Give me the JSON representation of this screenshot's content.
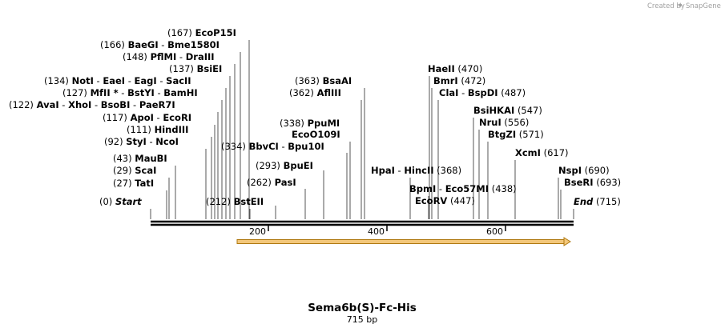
{
  "title": "Sema6b(S)-Fc-His",
  "length_label": "715 bp",
  "watermark": {
    "prefix": "Created by",
    "product": "SnapGene"
  },
  "axis_ticks": [
    "200",
    "400",
    "600"
  ],
  "sites": [
    {
      "pos": "(0)",
      "names": [
        "Start"
      ],
      "italic": true
    },
    {
      "pos": "(27)",
      "names": [
        "TatI"
      ]
    },
    {
      "pos": "(29)",
      "names": [
        "ScaI"
      ]
    },
    {
      "pos": "(43)",
      "names": [
        "MauBI"
      ]
    },
    {
      "pos": "(92)",
      "names": [
        "StyI",
        "NcoI"
      ]
    },
    {
      "pos": "(111)",
      "names": [
        "HindIII"
      ]
    },
    {
      "pos": "(117)",
      "names": [
        "ApoI",
        "EcoRI"
      ]
    },
    {
      "pos": "(122)",
      "names": [
        "AvaI",
        "XhoI",
        "BsoBI",
        "PaeR7I"
      ]
    },
    {
      "pos": "(127)",
      "names": [
        "MfII *",
        "BstYI",
        "BamHI"
      ]
    },
    {
      "pos": "(134)",
      "names": [
        "NotI",
        "EaeI",
        "EagI",
        "SacII"
      ]
    },
    {
      "pos": "(137)",
      "names": [
        "BsiEI"
      ]
    },
    {
      "pos": "(148)",
      "names": [
        "PflMI",
        "DraIII"
      ]
    },
    {
      "pos": "(166)",
      "names": [
        "BaeGI",
        "Bme1580I"
      ]
    },
    {
      "pos": "(167)",
      "names": [
        "EcoP15I"
      ]
    },
    {
      "pos": "(212)",
      "names": [
        "BstEII"
      ]
    },
    {
      "pos": "(262)",
      "names": [
        "PasI"
      ]
    },
    {
      "pos": "(293)",
      "names": [
        "BpuEI"
      ]
    },
    {
      "pos": "(334)",
      "names": [
        "BbvCI",
        "Bpu10I"
      ]
    },
    {
      "pos": "(338)",
      "names": [
        "PpuMI"
      ]
    },
    {
      "pos": "",
      "names": [
        "EcoO109I"
      ]
    },
    {
      "pos": "(362)",
      "names": [
        "AflIII"
      ]
    },
    {
      "pos": "(363)",
      "names": [
        "BsaAI"
      ]
    },
    {
      "pos": "(368)",
      "names": [
        "HpaI",
        "HincII"
      ]
    },
    {
      "pos": "(438)",
      "names": [
        "BpmI",
        "Eco57MI"
      ]
    },
    {
      "pos": "(447)",
      "names": [
        "EcoRV"
      ]
    },
    {
      "pos": "(470)",
      "names": [
        "HaeII"
      ]
    },
    {
      "pos": "(472)",
      "names": [
        "BmrI"
      ]
    },
    {
      "pos": "(487)",
      "names": [
        "ClaI",
        "BspDI"
      ]
    },
    {
      "pos": "(547)",
      "names": [
        "BsiHKAI"
      ]
    },
    {
      "pos": "(556)",
      "names": [
        "NruI"
      ]
    },
    {
      "pos": "(571)",
      "names": [
        "BtgZI"
      ]
    },
    {
      "pos": "(617)",
      "names": [
        "XcmI"
      ]
    },
    {
      "pos": "(690)",
      "names": [
        "NspI"
      ]
    },
    {
      "pos": "(693)",
      "names": [
        "BseRI"
      ]
    },
    {
      "pos": "(715)",
      "names": [
        "End"
      ],
      "italic": true
    }
  ],
  "colors": {
    "feature_fill": "#f3c77a",
    "feature_stroke": "#b07a12",
    "line": "#000000",
    "leader": "#555555"
  }
}
